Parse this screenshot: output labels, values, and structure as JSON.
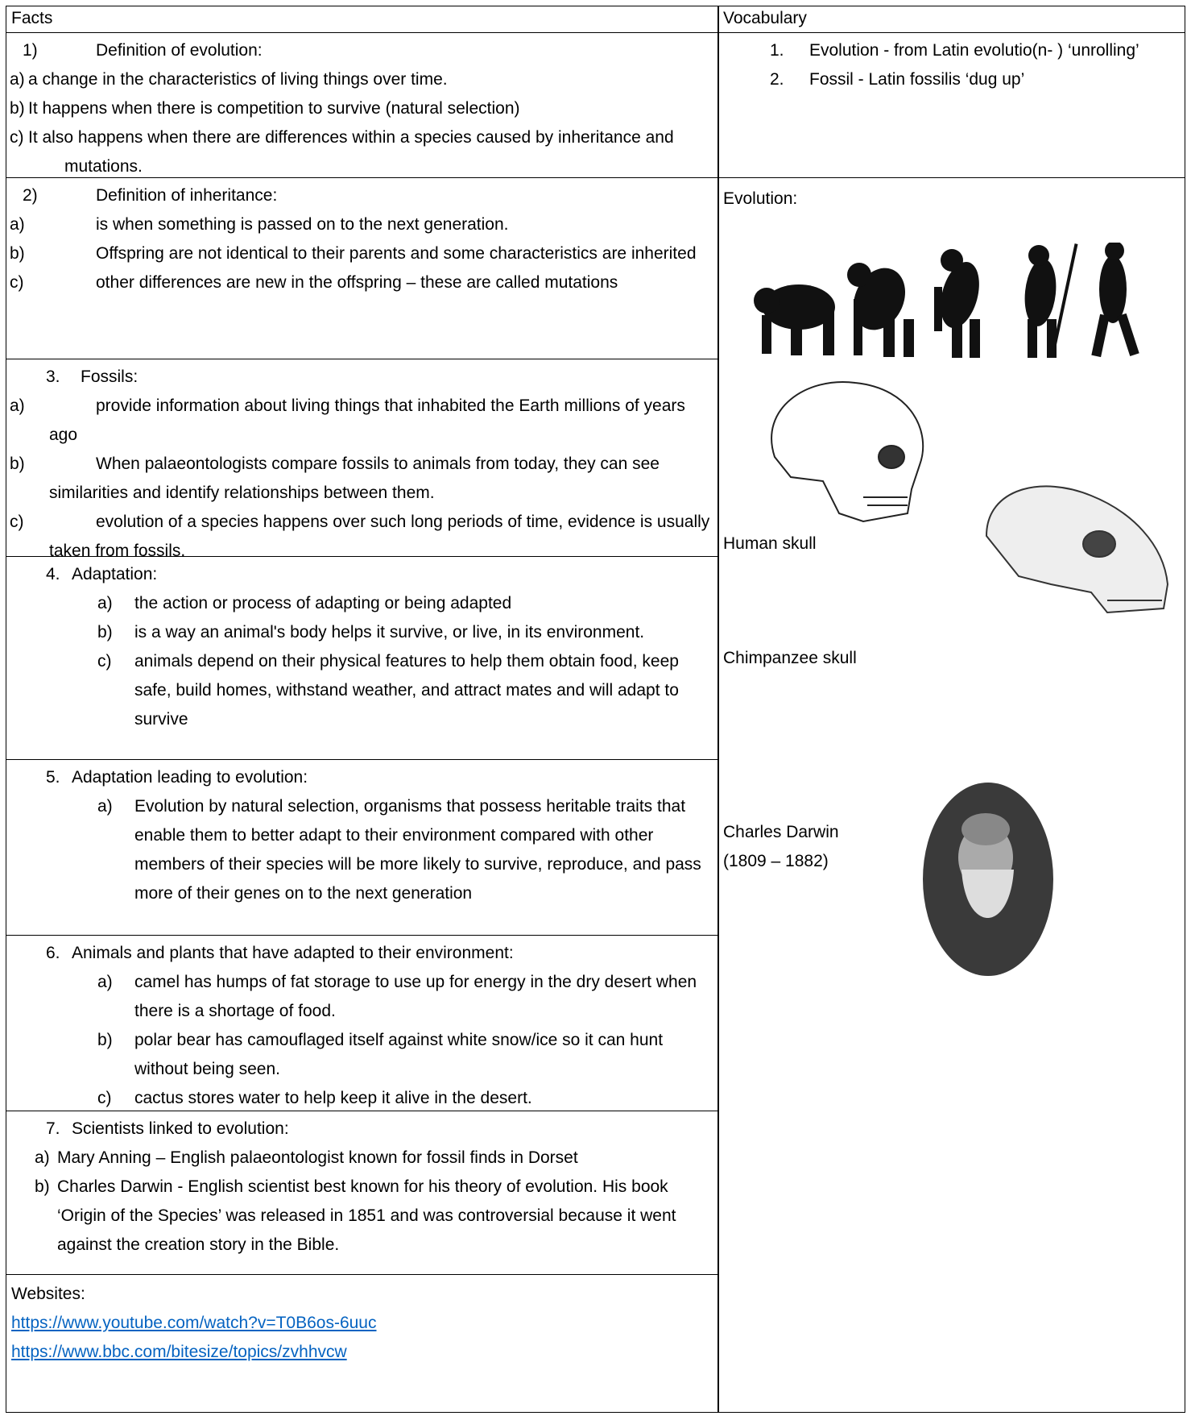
{
  "header": {
    "facts": "Facts",
    "vocabulary": "Vocabulary"
  },
  "sections": [
    {
      "marker": "1)",
      "heading": "Definition of evolution:",
      "items": [
        {
          "marker": "a)",
          "text": "a change in the characteristics of living things over time."
        },
        {
          "marker": "b)",
          "text": "It happens when there is competition to survive (natural selection)"
        },
        {
          "marker": "c)",
          "text": "It also happens when there are differences within a species caused by inheritance and mutations."
        }
      ]
    },
    {
      "marker": "2)",
      "heading": "Definition of inheritance:",
      "items": [
        {
          "marker": "a)",
          "text": "is when something is passed on to the next generation."
        },
        {
          "marker": "b)",
          "text": "Offspring are not identical to their parents and some characteristics are inherited"
        },
        {
          "marker": "c)",
          "text": "other differences are new in the offspring – these are called mutations"
        }
      ]
    },
    {
      "marker": "3.",
      "heading": "Fossils:",
      "items": [
        {
          "marker": "a)",
          "text": "provide information about living things that inhabited the Earth millions of years ago"
        },
        {
          "marker": "b)",
          "text": "When palaeontologists compare fossils to animals from today, they can see similarities and identify relationships between them."
        },
        {
          "marker": "c)",
          "text": "evolution of a species happens over such long periods of time, evidence is usually taken from fossils."
        }
      ]
    },
    {
      "marker": "4.",
      "heading": "Adaptation:",
      "items": [
        {
          "marker": "a)",
          "text": "the action or process of adapting or being adapted"
        },
        {
          "marker": "b)",
          "text": "is a way an animal's body helps it survive, or live, in its environment."
        },
        {
          "marker": "c)",
          "text": "animals depend on their physical features to help them obtain food, keep safe, build homes, withstand weather, and attract mates and will adapt to survive"
        }
      ]
    },
    {
      "marker": "5.",
      "heading": "Adaptation leading to evolution:",
      "items": [
        {
          "marker": "a)",
          "text": "Evolution by natural selection, organisms that possess heritable traits that enable them to better adapt to their environment compared with other members of their species will be more likely to survive, reproduce, and pass more of their genes on to the next generation"
        }
      ]
    },
    {
      "marker": "6.",
      "heading": "Animals and plants that have adapted to their environment:",
      "items": [
        {
          "marker": "a)",
          "text": "camel has humps of fat storage to use up for energy in the dry desert when there is a shortage of food."
        },
        {
          "marker": "b)",
          "text": "polar bear has camouflaged itself against white snow/ice so it can hunt without being seen."
        },
        {
          "marker": "c)",
          "text": "cactus stores water to help keep it alive in the desert."
        }
      ]
    },
    {
      "marker": "7.",
      "heading": "Scientists linked to evolution:",
      "items": [
        {
          "marker": "a)",
          "text": "Mary Anning – English palaeontologist known for fossil finds in Dorset"
        },
        {
          "marker": "b)",
          "text": "Charles Darwin  - English scientist best known for his theory of evolution. His book ‘Origin of the Species’ was released in 1851 and was controversial because it went against the creation story in the Bible."
        }
      ]
    }
  ],
  "websites": {
    "title": "Websites:",
    "links": [
      "https://www.youtube.com/watch?v=T0B6os-6uuc",
      "https://www.bbc.com/bitesize/topics/zvhhvcw"
    ]
  },
  "vocabulary": [
    {
      "marker": "1.",
      "text": "Evolution - from Latin evolutio(n- ) ‘unrolling’"
    },
    {
      "marker": "2.",
      "text": "Fossil - Latin fossilis ‘dug up’"
    }
  ],
  "pictures": {
    "evolution": "Evolution:",
    "human_skull": "Human skull",
    "chimp_skull": "Chimpanzee skull",
    "darwin_name": "Charles Darwin",
    "darwin_dates": "(1809 – 1882)"
  }
}
